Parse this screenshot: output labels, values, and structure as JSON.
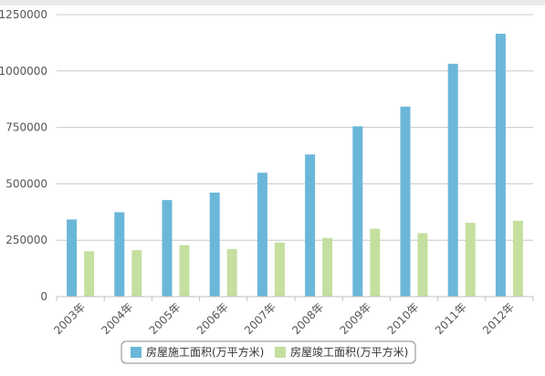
{
  "chart_data": {
    "type": "bar",
    "categories": [
      "2003年",
      "2004年",
      "2005年",
      "2006年",
      "2007年",
      "2008年",
      "2009年",
      "2010年",
      "2011年",
      "2012年"
    ],
    "series": [
      {
        "name": "房屋施工面积(万平方米)",
        "color": "#6bb7d9",
        "values": [
          342000,
          374000,
          428000,
          461000,
          549000,
          630000,
          755000,
          842000,
          1032000,
          1165000
        ]
      },
      {
        "name": "房屋竣工面积(万平方米)",
        "color": "#c5df9f",
        "values": [
          201000,
          206000,
          228000,
          211000,
          240000,
          260000,
          301000,
          281000,
          327000,
          336000
        ]
      }
    ],
    "yticks": [
      "0",
      "250000",
      "500000",
      "750000",
      "1000000",
      "1250000"
    ],
    "ylim": [
      0,
      1250000
    ],
    "grid": true,
    "legend_position": "bottom-center"
  }
}
